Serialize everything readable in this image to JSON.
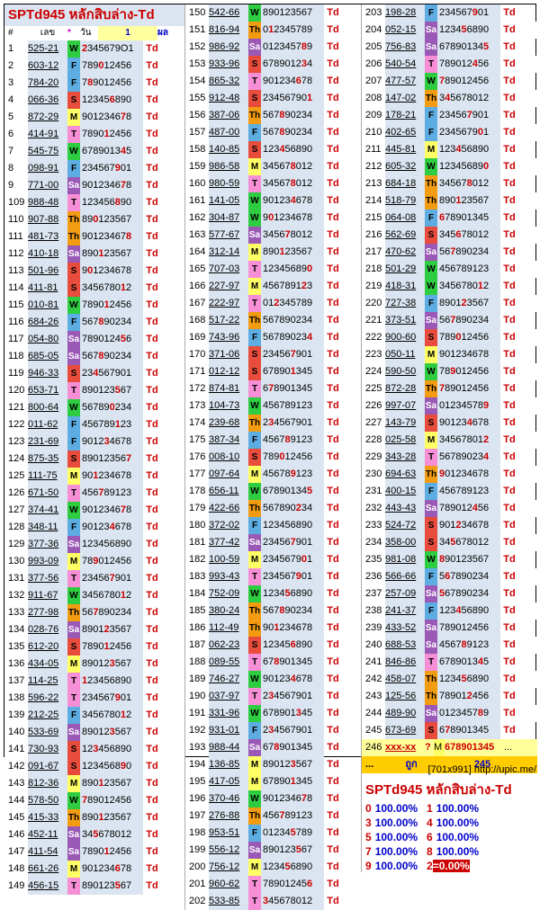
{
  "title": "SPTd945 หลักสิบล่าง-Td",
  "header": {
    "hash": "#",
    "col1": "เลข",
    "star": "*",
    "day": "วัน",
    "one": "1",
    "result": "ผล"
  },
  "col1": [
    [
      "1",
      "525-21",
      "W",
      "2345679O1"
    ],
    [
      "2",
      "603-12",
      "F",
      "789012456"
    ],
    [
      "3",
      "784-20",
      "F",
      "789012456"
    ],
    [
      "4",
      "066-36",
      "S",
      "123456890"
    ],
    [
      "5",
      "872-29",
      "M",
      "901234678"
    ],
    [
      "6",
      "414-91",
      "T",
      "789012456"
    ],
    [
      "7",
      "545-75",
      "W",
      "678901345"
    ],
    [
      "8",
      "098-91",
      "F",
      "234567901"
    ],
    [
      "9",
      "771-00",
      "Sa",
      "901234678"
    ],
    [
      "109",
      "988-48",
      "T",
      "123456890"
    ],
    [
      "110",
      "907-88",
      "Th",
      "890123567"
    ],
    [
      "111",
      "481-73",
      "Th",
      "901234678"
    ],
    [
      "112",
      "410-18",
      "Sa",
      "890123567"
    ],
    [
      "113",
      "501-96",
      "S",
      "901234678"
    ],
    [
      "114",
      "411-81",
      "S",
      "345678012"
    ],
    [
      "115",
      "010-81",
      "W",
      "789012456"
    ],
    [
      "116",
      "684-26",
      "F",
      "567890234"
    ],
    [
      "117",
      "054-80",
      "Sa",
      "789012456"
    ],
    [
      "118",
      "685-05",
      "Sa",
      "567890234"
    ],
    [
      "119",
      "946-33",
      "S",
      "234567901"
    ],
    [
      "120",
      "653-71",
      "T",
      "890123567"
    ],
    [
      "121",
      "800-64",
      "W",
      "567890234"
    ],
    [
      "122",
      "011-62",
      "F",
      "456789123"
    ],
    [
      "123",
      "231-69",
      "F",
      "901234678"
    ],
    [
      "124",
      "875-35",
      "S",
      "890123567"
    ],
    [
      "125",
      "111-75",
      "M",
      "901234678"
    ],
    [
      "126",
      "671-50",
      "T",
      "456789123"
    ],
    [
      "127",
      "374-41",
      "W",
      "901234678"
    ],
    [
      "128",
      "348-11",
      "F",
      "901234678"
    ],
    [
      "129",
      "377-36",
      "Sa",
      "123456890"
    ],
    [
      "130",
      "993-09",
      "M",
      "789012456"
    ],
    [
      "131",
      "377-56",
      "T",
      "234567901"
    ],
    [
      "132",
      "911-67",
      "W",
      "345678012"
    ],
    [
      "133",
      "277-98",
      "Th",
      "567890234"
    ],
    [
      "134",
      "028-76",
      "Sa",
      "890123567"
    ],
    [
      "135",
      "612-20",
      "S",
      "789012456"
    ],
    [
      "136",
      "434-05",
      "M",
      "890123567"
    ],
    [
      "137",
      "114-25",
      "T",
      "123456890"
    ],
    [
      "138",
      "596-22",
      "T",
      "234567901"
    ],
    [
      "139",
      "212-25",
      "F",
      "345678012"
    ],
    [
      "140",
      "533-69",
      "Sa",
      "890123567"
    ],
    [
      "141",
      "730-93",
      "S",
      "123456890"
    ],
    [
      "142",
      "091-67",
      "S",
      "123456890"
    ],
    [
      "143",
      "812-36",
      "M",
      "890123567"
    ],
    [
      "144",
      "578-50",
      "W",
      "789012456"
    ],
    [
      "145",
      "415-33",
      "Th",
      "890123567"
    ],
    [
      "146",
      "452-11",
      "Sa",
      "345678012"
    ],
    [
      "147",
      "411-54",
      "Sa",
      "789012456"
    ],
    [
      "148",
      "661-26",
      "M",
      "901234678"
    ],
    [
      "149",
      "456-15",
      "T",
      "890123567"
    ]
  ],
  "col2": [
    [
      "150",
      "542-66",
      "W",
      "890123567"
    ],
    [
      "151",
      "816-94",
      "Th",
      "012345789"
    ],
    [
      "152",
      "986-92",
      "Sa",
      "012345789"
    ],
    [
      "153",
      "933-96",
      "S",
      "678901234"
    ],
    [
      "154",
      "865-32",
      "T",
      "901234678"
    ],
    [
      "155",
      "912-48",
      "S",
      "234567901"
    ],
    [
      "156",
      "387-06",
      "Th",
      "567890234"
    ],
    [
      "157",
      "487-00",
      "F",
      "567890234"
    ],
    [
      "158",
      "140-85",
      "S",
      "123456890"
    ],
    [
      "159",
      "986-58",
      "M",
      "345678012"
    ],
    [
      "160",
      "980-59",
      "T",
      "345678012"
    ],
    [
      "161",
      "141-05",
      "W",
      "901234678"
    ],
    [
      "162",
      "304-87",
      "W",
      "901234678"
    ],
    [
      "163",
      "577-67",
      "Sa",
      "345678012"
    ],
    [
      "164",
      "312-14",
      "M",
      "890123567"
    ],
    [
      "165",
      "707-03",
      "T",
      "123456890"
    ],
    [
      "166",
      "227-97",
      "M",
      "456789123"
    ],
    [
      "167",
      "222-97",
      "T",
      "012345789"
    ],
    [
      "168",
      "517-22",
      "Th",
      "567890234"
    ],
    [
      "169",
      "743-96",
      "F",
      "567890234"
    ],
    [
      "170",
      "371-06",
      "S",
      "234567901"
    ],
    [
      "171",
      "012-12",
      "S",
      "678901345"
    ],
    [
      "172",
      "874-81",
      "T",
      "678901345"
    ],
    [
      "173",
      "104-73",
      "W",
      "456789123"
    ],
    [
      "174",
      "239-68",
      "Th",
      "234567901"
    ],
    [
      "175",
      "387-34",
      "F",
      "456789123"
    ],
    [
      "176",
      "008-10",
      "S",
      "789012456"
    ],
    [
      "177",
      "097-64",
      "M",
      "456789123"
    ],
    [
      "178",
      "656-11",
      "W",
      "678901345"
    ],
    [
      "179",
      "422-66",
      "Th",
      "567890234"
    ],
    [
      "180",
      "372-02",
      "F",
      "123456890"
    ],
    [
      "181",
      "377-42",
      "Sa",
      "234567901"
    ],
    [
      "182",
      "100-59",
      "M",
      "234567901"
    ],
    [
      "183",
      "993-43",
      "T",
      "234567901"
    ],
    [
      "184",
      "752-09",
      "W",
      "123456890"
    ],
    [
      "185",
      "380-24",
      "Th",
      "567890234"
    ],
    [
      "186",
      "112-49",
      "Th",
      "901234678"
    ],
    [
      "187",
      "062-23",
      "S",
      "123456890"
    ],
    [
      "188",
      "089-55",
      "T",
      "678901345"
    ],
    [
      "189",
      "746-27",
      "W",
      "901234678"
    ],
    [
      "190",
      "037-97",
      "T",
      "234567901"
    ],
    [
      "191",
      "331-96",
      "W",
      "678901345"
    ],
    [
      "192",
      "931-01",
      "F",
      "234567901"
    ],
    [
      "193",
      "988-44",
      "Sa",
      "678901345"
    ],
    [
      "194",
      "136-85",
      "M",
      "890123567"
    ],
    [
      "195",
      "417-05",
      "M",
      "678901345"
    ],
    [
      "196",
      "370-46",
      "W",
      "901234678"
    ],
    [
      "197",
      "276-88",
      "Th",
      "456789123"
    ],
    [
      "198",
      "953-51",
      "F",
      "012345789"
    ],
    [
      "199",
      "556-12",
      "Sa",
      "890123567"
    ],
    [
      "200",
      "756-12",
      "M",
      "123456890"
    ],
    [
      "201",
      "960-62",
      "T",
      "789012456"
    ],
    [
      "202",
      "533-85",
      "T",
      "345678012"
    ]
  ],
  "col3": [
    [
      "203",
      "198-28",
      "F",
      "234567901"
    ],
    [
      "204",
      "052-15",
      "Sa",
      "123456890"
    ],
    [
      "205",
      "756-83",
      "Sa",
      "678901345"
    ],
    [
      "206",
      "540-54",
      "T",
      "789012456"
    ],
    [
      "207",
      "477-57",
      "W",
      "789012456"
    ],
    [
      "208",
      "147-02",
      "Th",
      "345678012"
    ],
    [
      "209",
      "178-21",
      "F",
      "234567901"
    ],
    [
      "210",
      "402-65",
      "F",
      "234567901"
    ],
    [
      "211",
      "445-81",
      "M",
      "123456890"
    ],
    [
      "212",
      "605-32",
      "W",
      "123456890"
    ],
    [
      "213",
      "684-18",
      "Th",
      "345678012"
    ],
    [
      "214",
      "518-79",
      "Th",
      "890123567"
    ],
    [
      "215",
      "064-08",
      "F",
      "678901345"
    ],
    [
      "216",
      "562-69",
      "S",
      "345678012"
    ],
    [
      "217",
      "470-62",
      "Sa",
      "567890234"
    ],
    [
      "218",
      "501-29",
      "W",
      "456789123"
    ],
    [
      "219",
      "418-31",
      "W",
      "345678012"
    ],
    [
      "220",
      "727-38",
      "F",
      "890123567"
    ],
    [
      "221",
      "373-51",
      "Sa",
      "567890234"
    ],
    [
      "222",
      "900-60",
      "S",
      "789012456"
    ],
    [
      "223",
      "050-11",
      "M",
      "901234678"
    ],
    [
      "224",
      "590-50",
      "W",
      "789012456"
    ],
    [
      "225",
      "872-28",
      "Th",
      "789012456"
    ],
    [
      "226",
      "997-07",
      "Sa",
      "012345789"
    ],
    [
      "227",
      "143-79",
      "S",
      "901234678"
    ],
    [
      "228",
      "025-58",
      "M",
      "345678012"
    ],
    [
      "229",
      "343-28",
      "T",
      "567890234"
    ],
    [
      "230",
      "694-63",
      "Th",
      "901234678"
    ],
    [
      "231",
      "400-15",
      "F",
      "456789123"
    ],
    [
      "232",
      "443-43",
      "Sa",
      "789012456"
    ],
    [
      "233",
      "524-72",
      "S",
      "901234678"
    ],
    [
      "234",
      "358-00",
      "S",
      "345678012"
    ],
    [
      "235",
      "981-08",
      "W",
      "890123567"
    ],
    [
      "236",
      "566-66",
      "F",
      "567890234"
    ],
    [
      "237",
      "257-09",
      "Sa",
      "567890234"
    ],
    [
      "238",
      "241-37",
      "F",
      "123456890"
    ],
    [
      "239",
      "433-52",
      "Sa",
      "789012456"
    ],
    [
      "240",
      "688-53",
      "Sa",
      "456789123"
    ],
    [
      "241",
      "846-86",
      "T",
      "678901345"
    ],
    [
      "242",
      "458-07",
      "Th",
      "123456890"
    ],
    [
      "243",
      "125-56",
      "Th",
      "789012456"
    ],
    [
      "244",
      "489-90",
      "Sa",
      "012345789"
    ],
    [
      "245",
      "673-69",
      "S",
      "678901345"
    ]
  ],
  "last_row": {
    "n": "246",
    "v": "xxx-xx",
    "q": "?",
    "d": "M",
    "s": "678901345",
    "dots": "..."
  },
  "summary_row": {
    "dots": "...",
    "label": "ถูก",
    "count": "245"
  },
  "stats_title": "SPTd945 หลักสิบล่าง-Td",
  "stats": [
    {
      "k": "0",
      "v": "100.00%"
    },
    {
      "k": "1",
      "v": "100.00%"
    },
    {
      "k": "3",
      "v": "100.00%"
    },
    {
      "k": "4",
      "v": "100.00%"
    },
    {
      "k": "5",
      "v": "100.00%"
    },
    {
      "k": "6",
      "v": "100.00%"
    },
    {
      "k": "7",
      "v": "100.00%"
    },
    {
      "k": "8",
      "v": "100.00%"
    },
    {
      "k": "9",
      "v": "100.00%"
    },
    {
      "k": "2",
      "v": "=0.00%"
    }
  ],
  "result_mark": "Td",
  "footer": "[701x991] http://upic.me/"
}
